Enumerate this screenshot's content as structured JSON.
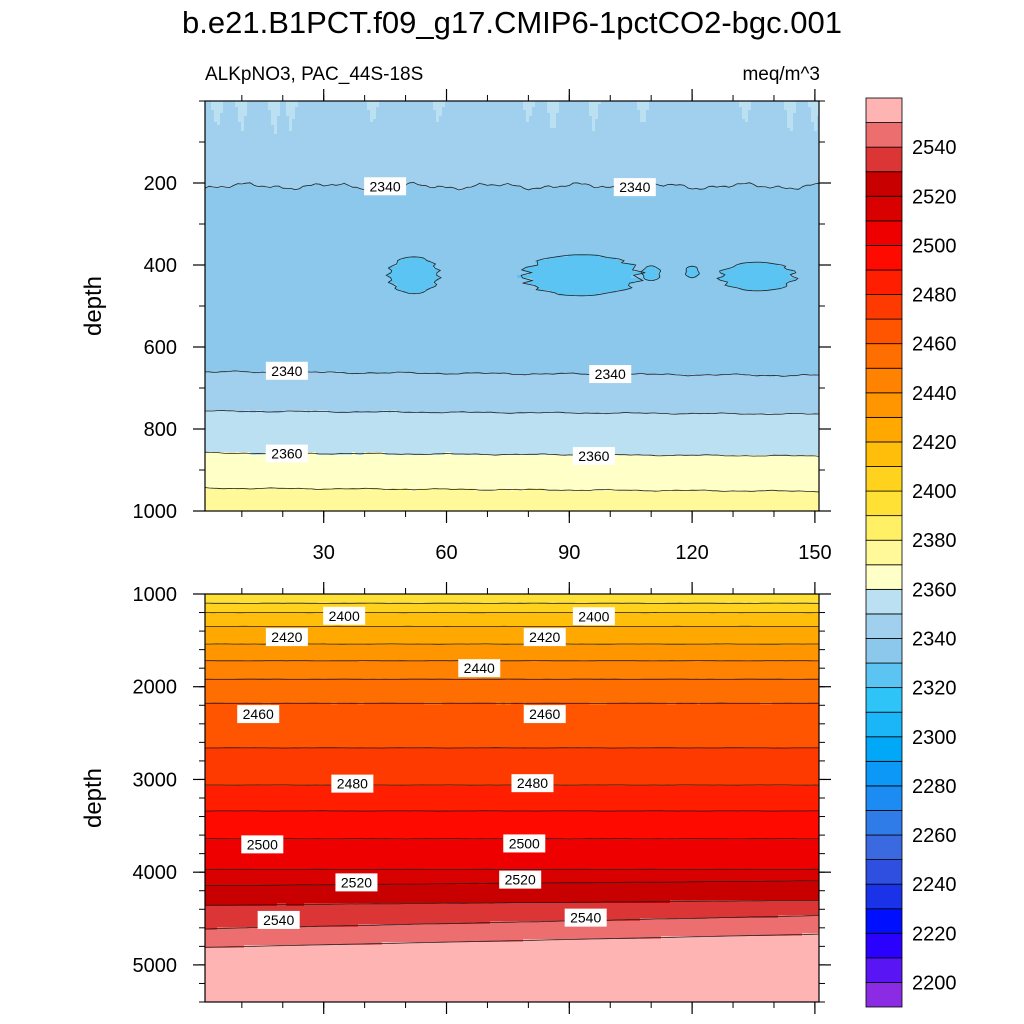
{
  "chart_data": {
    "type": "contour",
    "title": "b.e21.B1PCT.f09_g17.CMIP6-1pctCO2-bgc.001",
    "variable_label": "ALKpNO3, PAC_44S-18S",
    "units_label": "meq/m^3",
    "panels": [
      {
        "id": "upper",
        "ylabel": "depth",
        "ylim": [
          0,
          1000
        ],
        "xlim": [
          1,
          151
        ],
        "y_ticks": [
          "200",
          "400",
          "600",
          "800",
          "1000"
        ],
        "x_ticks": [
          "30",
          "60",
          "90",
          "120",
          "150"
        ],
        "contour_labels": [
          {
            "text": "2340",
            "x": 45,
            "y": 208
          },
          {
            "text": "2340",
            "x": 106,
            "y": 210
          },
          {
            "text": "2340",
            "x": 21,
            "y": 658
          },
          {
            "text": "2340",
            "x": 100,
            "y": 666
          },
          {
            "text": "2360",
            "x": 21,
            "y": 860
          },
          {
            "text": "2360",
            "x": 96,
            "y": 866
          }
        ]
      },
      {
        "id": "lower",
        "ylabel": "depth",
        "ylim": [
          1000,
          5400
        ],
        "xlim": [
          1,
          151
        ],
        "y_ticks": [
          "1000",
          "2000",
          "3000",
          "4000",
          "5000"
        ],
        "contour_labels": [
          {
            "text": "2400",
            "x": 35,
            "y": 1235
          },
          {
            "text": "2400",
            "x": 96,
            "y": 1240
          },
          {
            "text": "2420",
            "x": 21,
            "y": 1465
          },
          {
            "text": "2420",
            "x": 84,
            "y": 1465
          },
          {
            "text": "2440",
            "x": 68,
            "y": 1800
          },
          {
            "text": "2460",
            "x": 14,
            "y": 2295
          },
          {
            "text": "2460",
            "x": 84,
            "y": 2295
          },
          {
            "text": "2480",
            "x": 37,
            "y": 3045
          },
          {
            "text": "2480",
            "x": 81,
            "y": 3040
          },
          {
            "text": "2500",
            "x": 15,
            "y": 3700
          },
          {
            "text": "2500",
            "x": 79,
            "y": 3690
          },
          {
            "text": "2520",
            "x": 38,
            "y": 4110
          },
          {
            "text": "2520",
            "x": 78,
            "y": 4080
          },
          {
            "text": "2540",
            "x": 19,
            "y": 4515
          },
          {
            "text": "2540",
            "x": 94,
            "y": 4490
          }
        ]
      }
    ],
    "colorbar": {
      "levels": [
        2200,
        2210,
        2220,
        2230,
        2240,
        2250,
        2260,
        2270,
        2280,
        2290,
        2300,
        2310,
        2320,
        2330,
        2340,
        2350,
        2360,
        2370,
        2380,
        2390,
        2400,
        2410,
        2420,
        2430,
        2440,
        2450,
        2460,
        2470,
        2480,
        2490,
        2500,
        2510,
        2520,
        2530,
        2540,
        2550
      ],
      "tick_labels": [
        "2200",
        "2220",
        "2240",
        "2260",
        "2280",
        "2300",
        "2320",
        "2340",
        "2360",
        "2380",
        "2400",
        "2420",
        "2440",
        "2460",
        "2480",
        "2500",
        "2520",
        "2540"
      ],
      "colors": [
        "#8B2BE3",
        "#5A15F5",
        "#2A00FF",
        "#0010FF",
        "#1A32E8",
        "#2F4FE0",
        "#3B6AE0",
        "#2F7BE8",
        "#1C8CF2",
        "#0C98F7",
        "#00A8F7",
        "#1AB6F7",
        "#2EC4F7",
        "#5CC4F2",
        "#8CC8EC",
        "#A0D0EE",
        "#BAE0F2",
        "#FFFFC8",
        "#FFF99A",
        "#FFF066",
        "#FFE136",
        "#FFD21E",
        "#FFBE0A",
        "#FFA800",
        "#FF9600",
        "#FF8200",
        "#FF6E00",
        "#FF5400",
        "#FF3A00",
        "#FF1E00",
        "#FF0A00",
        "#EE0000",
        "#D90000",
        "#C80000",
        "#DC3535",
        "#EC6E6E",
        "#FFB4B4"
      ]
    }
  }
}
